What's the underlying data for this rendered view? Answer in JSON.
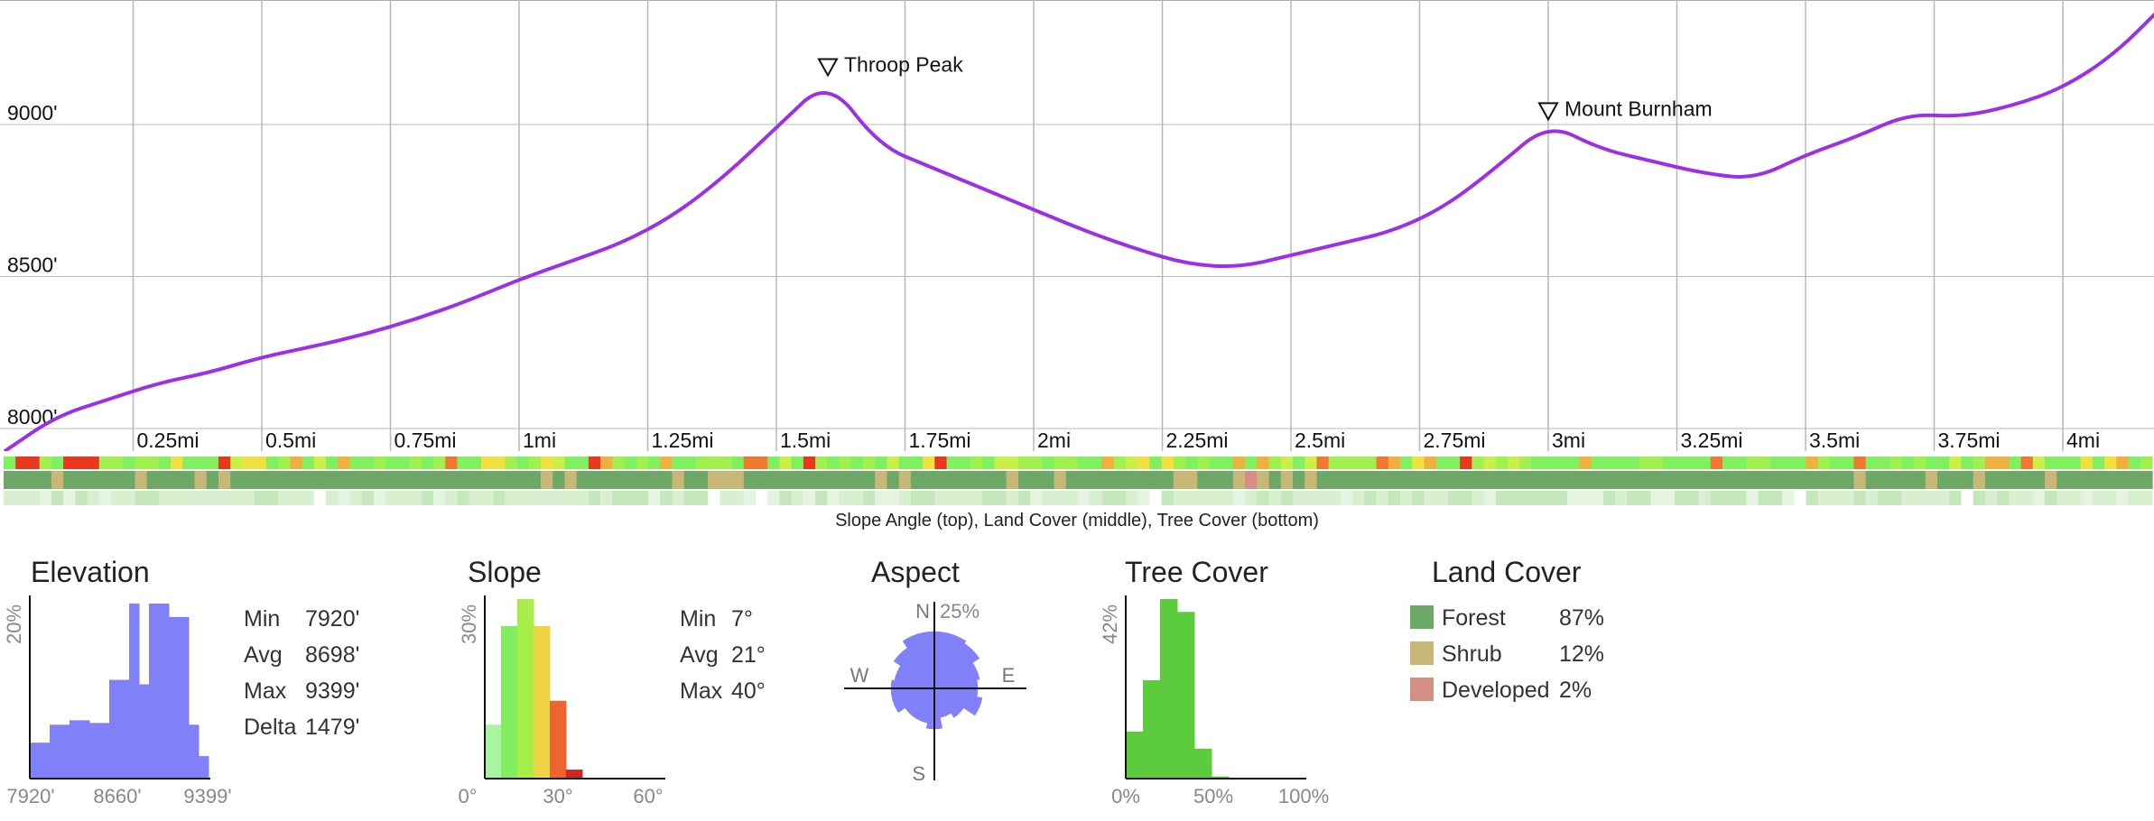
{
  "profile": {
    "y_ticks": [
      "9000'",
      "8500'",
      "8000'"
    ],
    "x_ticks": [
      "0.25mi",
      "0.5mi",
      "0.75mi",
      "1mi",
      "1.25mi",
      "1.5mi",
      "1.75mi",
      "2mi",
      "2.25mi",
      "2.5mi",
      "2.75mi",
      "3mi",
      "3.25mi",
      "3.5mi",
      "3.75mi",
      "4mi"
    ],
    "peaks": [
      {
        "name": "Throop Peak",
        "dist_mi": 1.6,
        "elev_ft": 9150
      },
      {
        "name": "Mount Burnham",
        "dist_mi": 3.0,
        "elev_ft": 9005
      }
    ],
    "line_color": "#9b30e8",
    "band_caption": "Slope Angle (top), Land Cover (middle), Tree Cover (bottom)"
  },
  "chart_data": [
    {
      "type": "line",
      "series": [
        {
          "x": [
            0,
            0.1,
            0.2,
            0.3,
            0.4,
            0.5,
            0.6,
            0.7,
            0.8,
            0.9,
            1.0,
            1.1,
            1.2,
            1.3,
            1.4,
            1.5,
            1.6,
            1.7,
            1.8,
            1.9,
            2.0,
            2.1,
            2.2,
            2.3,
            2.4,
            2.5,
            2.6,
            2.7,
            2.8,
            2.9,
            3.0,
            3.1,
            3.2,
            3.3,
            3.4,
            3.5,
            3.6,
            3.7,
            3.8,
            3.9,
            4.0,
            4.1,
            4.2
          ],
          "y": [
            7925,
            8040,
            8095,
            8150,
            8185,
            8235,
            8270,
            8310,
            8360,
            8420,
            8490,
            8550,
            8610,
            8700,
            8830,
            8990,
            9150,
            8930,
            8860,
            8790,
            8720,
            8650,
            8590,
            8540,
            8530,
            8570,
            8610,
            8650,
            8730,
            8860,
            9005,
            8920,
            8880,
            8840,
            8820,
            8900,
            8960,
            9035,
            9025,
            9060,
            9120,
            9230,
            9399
          ]
        }
      ],
      "xlim": [
        0,
        4.2
      ],
      "ylim": [
        7880,
        9399
      ],
      "grid": true
    },
    {
      "type": "bar",
      "title": "Elevation",
      "categories": [
        7920,
        8005,
        8090,
        8175,
        8260,
        8345,
        8430,
        8515,
        8600,
        8685,
        8770,
        8855,
        8940,
        9025,
        9110,
        9195,
        9280,
        9365
      ],
      "values": [
        4,
        4,
        6,
        6,
        6.5,
        6.5,
        6.2,
        6.2,
        11,
        11,
        19.5,
        10.5,
        19.5,
        19.5,
        18,
        18,
        6,
        2.5
      ],
      "x_ticks": [
        "7920'",
        "8660'",
        "9399'"
      ],
      "y_label": "20%",
      "color": "#8080f8",
      "stats": [
        {
          "label": "Min",
          "value": "7920'"
        },
        {
          "label": "Avg",
          "value": "8698'"
        },
        {
          "label": "Max",
          "value": "9399'"
        },
        {
          "label": "Delta",
          "value": "1479'"
        }
      ]
    },
    {
      "type": "bar",
      "title": "Slope",
      "categories": [
        5,
        10,
        15,
        20,
        25,
        30,
        35,
        40,
        45,
        50,
        55
      ],
      "values": [
        9,
        25.5,
        30,
        25.5,
        13,
        1.5,
        0,
        0,
        0,
        0,
        0
      ],
      "colors": [
        "#a8f4a0",
        "#80ee60",
        "#a8ee48",
        "#f0d448",
        "#ee6430",
        "#cc2828",
        "#cc2828",
        "#cc2828",
        "#cc2828",
        "#cc2828",
        "#cc2828"
      ],
      "x_ticks": [
        "0°",
        "30°",
        "60°"
      ],
      "y_label": "30%",
      "stats": [
        {
          "label": "Min",
          "value": "7°"
        },
        {
          "label": "Avg",
          "value": "21°"
        },
        {
          "label": "Max",
          "value": "40°"
        }
      ]
    },
    {
      "type": "pie",
      "title": "Aspect",
      "categories": [
        "N",
        "NNE",
        "NE",
        "ENE",
        "E",
        "ESE",
        "SE",
        "SSE",
        "S",
        "SSW",
        "SW",
        "WSW",
        "W",
        "WNW",
        "NW",
        "NNW"
      ],
      "values": [
        21,
        21,
        20,
        17,
        16,
        18,
        13,
        11,
        15,
        13,
        13,
        16,
        16,
        15,
        18,
        21
      ],
      "ring_label": "25%",
      "direction_labels": [
        "N",
        "E",
        "S",
        "W"
      ],
      "color": "#8080f8"
    },
    {
      "type": "bar",
      "title": "Tree Cover",
      "categories": [
        0,
        10,
        20,
        30,
        40,
        50,
        60,
        70,
        80,
        90
      ],
      "values": [
        11,
        23,
        42,
        39,
        7,
        0.5,
        0,
        0,
        0,
        0
      ],
      "x_ticks": [
        "0%",
        "50%",
        "100%"
      ],
      "y_label": "42%",
      "color": "#5ccc3c"
    },
    {
      "type": "table",
      "title": "Land Cover",
      "rows": [
        {
          "name": "Forest",
          "pct": "87%",
          "color": "#6ea867"
        },
        {
          "name": "Shrub",
          "pct": "12%",
          "color": "#c8b878"
        },
        {
          "name": "Developed",
          "pct": "2%",
          "color": "#d48e84"
        }
      ]
    }
  ]
}
